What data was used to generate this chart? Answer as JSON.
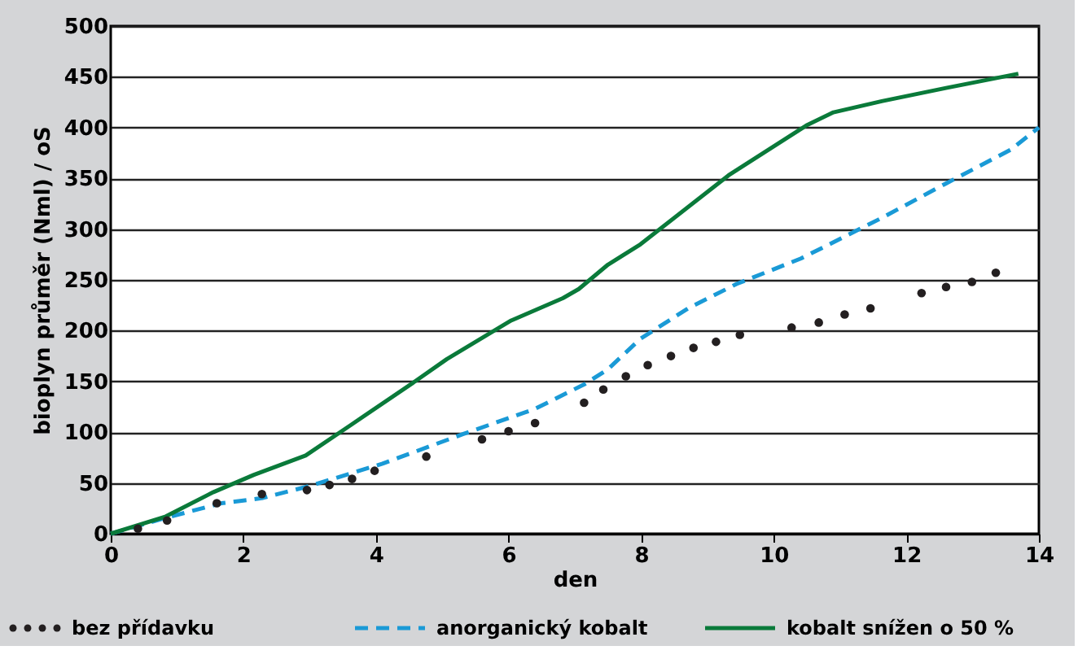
{
  "chart_data": {
    "type": "line",
    "xlabel": "den",
    "ylabel": "bioplyn průměr (Nml) / oS",
    "xlim": [
      0,
      14
    ],
    "xticks": [
      0,
      2,
      4,
      6,
      8,
      10,
      12,
      14
    ],
    "ylim": [
      0,
      500
    ],
    "yticks": [
      0,
      50,
      100,
      150,
      200,
      250,
      300,
      350,
      400,
      450,
      500
    ],
    "grid": "y",
    "legend": "bottom",
    "series": [
      {
        "name": "bez přídavku",
        "type": "scatter",
        "marker": "circle",
        "color": "#231f20",
        "x": [
          0.41,
          0.85,
          1.6,
          2.28,
          2.96,
          3.3,
          3.64,
          3.98,
          4.76,
          5.6,
          6.0,
          6.4,
          7.14,
          7.43,
          7.77,
          8.1,
          8.45,
          8.79,
          9.13,
          9.49,
          10.27,
          10.68,
          11.07,
          11.46,
          12.23,
          12.6,
          12.99,
          13.35
        ],
        "values": [
          5,
          13,
          30,
          39,
          43,
          48,
          54,
          62,
          76,
          93,
          101,
          109,
          129,
          142,
          155,
          166,
          175,
          183,
          189,
          196,
          203,
          208,
          216,
          222,
          237,
          243,
          248,
          257
        ]
      },
      {
        "name": "anorganický kobalt",
        "line_style": "dashed",
        "color": "#1a9ad6",
        "x": [
          0,
          0.85,
          1.67,
          2.28,
          3.0,
          4.1,
          5.31,
          6.4,
          7.14,
          7.5,
          7.99,
          8.71,
          9.44,
          10.41,
          11.63,
          12.6,
          13.57,
          14
        ],
        "values": [
          0,
          16,
          30,
          35,
          47,
          69,
          98,
          123,
          147,
          162,
          192,
          222,
          246,
          271,
          311,
          345,
          378,
          400
        ]
      },
      {
        "name": "kobalt snížen o 50 %",
        "line_style": "solid",
        "color": "#0a7a3a",
        "x": [
          0,
          0.83,
          1.55,
          2.16,
          2.94,
          3.62,
          4.59,
          5.07,
          6.04,
          6.82,
          7.06,
          7.5,
          7.99,
          9.32,
          10.49,
          10.9,
          11.63,
          12.6,
          13.69
        ],
        "values": [
          0,
          17,
          41,
          58,
          77,
          107,
          150,
          172,
          210,
          232,
          241,
          265,
          285,
          353,
          402,
          415,
          426,
          439,
          453
        ]
      }
    ]
  }
}
